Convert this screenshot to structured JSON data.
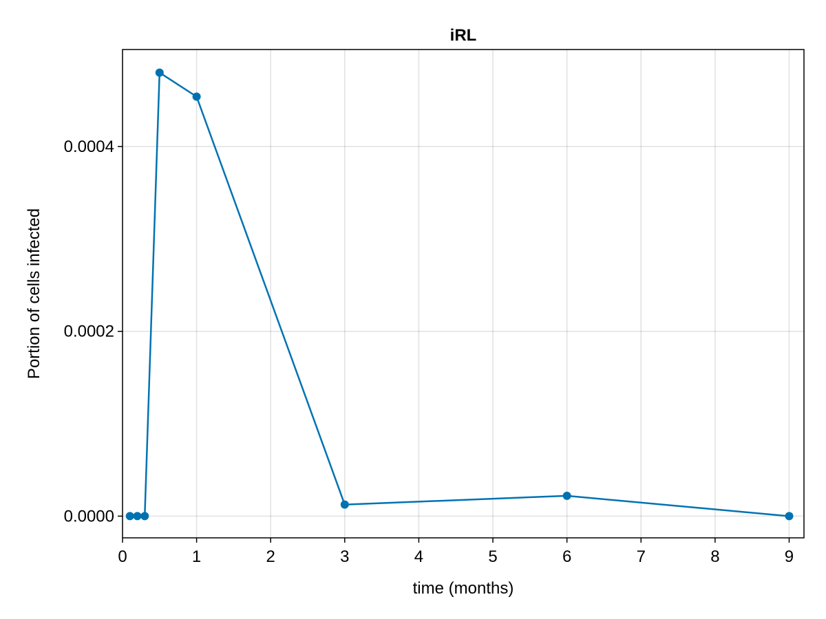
{
  "chart_data": {
    "type": "line",
    "title": "iRL",
    "xlabel": "time (months)",
    "ylabel": "Portion of cells infected",
    "xlim": [
      0,
      9.2
    ],
    "ylim": [
      -2.35e-05,
      0.000505
    ],
    "xticks": [
      0,
      1,
      2,
      3,
      4,
      5,
      6,
      7,
      8,
      9
    ],
    "xtick_labels": [
      "0",
      "1",
      "2",
      "3",
      "4",
      "5",
      "6",
      "7",
      "8",
      "9"
    ],
    "yticks": [
      0.0,
      0.0002,
      0.0004
    ],
    "ytick_labels": [
      "0.0000",
      "0.0002",
      "0.0004"
    ],
    "grid": true,
    "markers": true,
    "series": [
      {
        "color": "#0072b2",
        "x": [
          0.1,
          0.2,
          0.3,
          0.5,
          1,
          3,
          6,
          9
        ],
        "y": [
          0.0,
          0.0,
          0.0,
          0.00048,
          0.000454,
          1.25e-05,
          2.2e-05,
          0.0
        ]
      }
    ]
  }
}
